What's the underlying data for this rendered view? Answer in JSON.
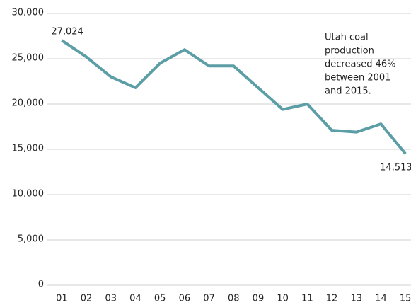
{
  "chart_data": {
    "type": "line",
    "categories": [
      "01",
      "02",
      "03",
      "04",
      "05",
      "06",
      "07",
      "08",
      "09",
      "10",
      "11",
      "12",
      "13",
      "14",
      "15"
    ],
    "series": [
      {
        "name": "Utah coal production",
        "color": "#5b9ea6",
        "values": [
          27024,
          25200,
          23000,
          21800,
          24500,
          26000,
          24200,
          24200,
          21800,
          19400,
          20000,
          17100,
          16900,
          17800,
          14513
        ],
        "value_labels": [
          "27,024",
          null,
          null,
          null,
          null,
          null,
          null,
          null,
          null,
          null,
          null,
          null,
          null,
          null,
          "14,513"
        ]
      }
    ],
    "ylim": [
      0,
      30000
    ],
    "yticks": [
      0,
      {
        "value": 5000,
        "label": "5,000"
      },
      {
        "value": 10000,
        "label": "10,000"
      },
      {
        "value": 15000,
        "label": "15,000"
      },
      {
        "value": 20000,
        "label": "20,000"
      },
      {
        "value": 25000,
        "label": "25,000"
      },
      {
        "value": 30000,
        "label": "30,000"
      }
    ],
    "grid": true,
    "annotation": [
      "Utah coal",
      "production",
      "decreased 46%",
      "between 2001",
      "and 2015."
    ]
  }
}
